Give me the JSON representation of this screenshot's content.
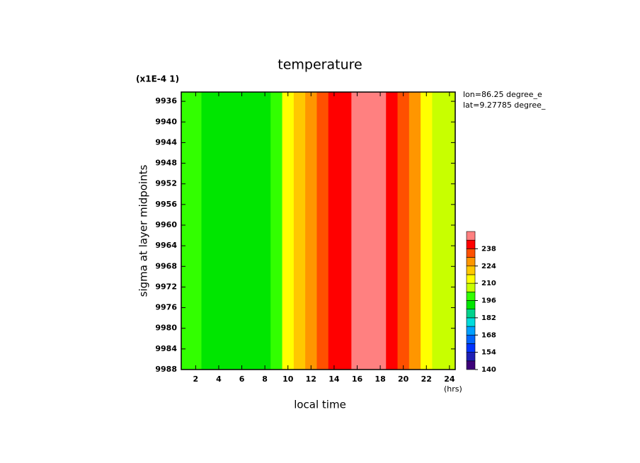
{
  "chart_data": {
    "type": "heatmap",
    "title": "temperature",
    "scale_note": "(x1E-4 1)",
    "x_label": "local time",
    "x_unit": "(hrs)",
    "y_label": "sigma at layer midpoints",
    "annotations": [
      "lon=86.25 degree_e",
      "lat=9.27785 degree_"
    ],
    "x": [
      1,
      2,
      3,
      4,
      5,
      6,
      7,
      8,
      9,
      10,
      11,
      12,
      13,
      14,
      15,
      16,
      17,
      18,
      19,
      20,
      21,
      22,
      23,
      24
    ],
    "values": [
      200,
      196,
      193,
      191,
      190,
      190,
      191,
      193,
      200,
      212,
      222,
      230,
      237,
      240,
      244,
      247,
      248,
      246,
      242,
      234,
      225,
      216,
      208,
      203
    ],
    "xlim": [
      0.75,
      24.5
    ],
    "xticks": [
      2,
      4,
      6,
      8,
      10,
      12,
      14,
      16,
      18,
      20,
      22,
      24
    ],
    "ylim": [
      9934.2,
      9988
    ],
    "yticks": [
      9936,
      9940,
      9944,
      9948,
      9952,
      9956,
      9960,
      9964,
      9968,
      9972,
      9976,
      9980,
      9984,
      9988
    ],
    "colorbar": {
      "lim": [
        140,
        252
      ],
      "levels": [
        140,
        147,
        154,
        161,
        168,
        175,
        182,
        189,
        196,
        203,
        210,
        217,
        224,
        231,
        238,
        245,
        252
      ],
      "colors": [
        "#3c0078",
        "#1e1eb4",
        "#0032ff",
        "#0064ff",
        "#00a0ff",
        "#00dcdc",
        "#00d28c",
        "#00e600",
        "#32ff00",
        "#c8ff00",
        "#ffff00",
        "#ffc800",
        "#ff9600",
        "#ff5000",
        "#ff0000",
        "#ff8080"
      ],
      "ticks": [
        140,
        154,
        168,
        182,
        196,
        210,
        224,
        238
      ]
    }
  }
}
